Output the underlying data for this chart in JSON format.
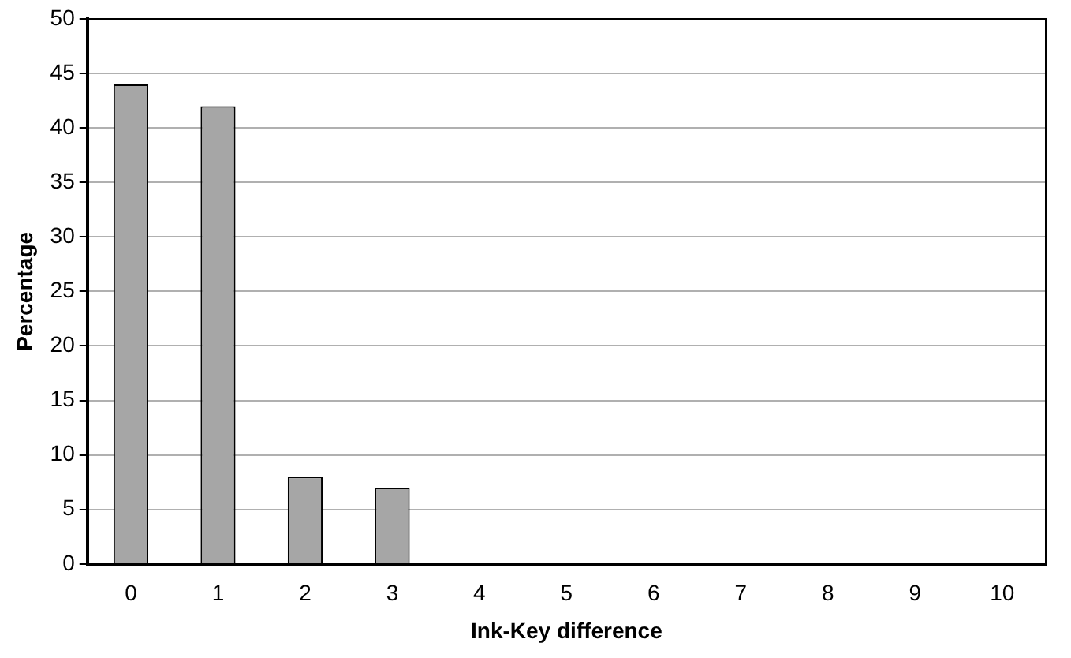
{
  "chart_data": {
    "type": "bar",
    "xlabel": "Ink-Key difference",
    "ylabel": "Percentage",
    "categories": [
      "0",
      "1",
      "2",
      "3",
      "4",
      "5",
      "6",
      "7",
      "8",
      "9",
      "10"
    ],
    "values": [
      44,
      42,
      8,
      7,
      0,
      0,
      0,
      0,
      0,
      0,
      0
    ],
    "color": "#a6a6a6",
    "ylim": [
      0,
      50
    ],
    "yticks": [
      0,
      5,
      10,
      15,
      20,
      25,
      30,
      35,
      40,
      45,
      50
    ],
    "grid": "y",
    "legend": false
  }
}
